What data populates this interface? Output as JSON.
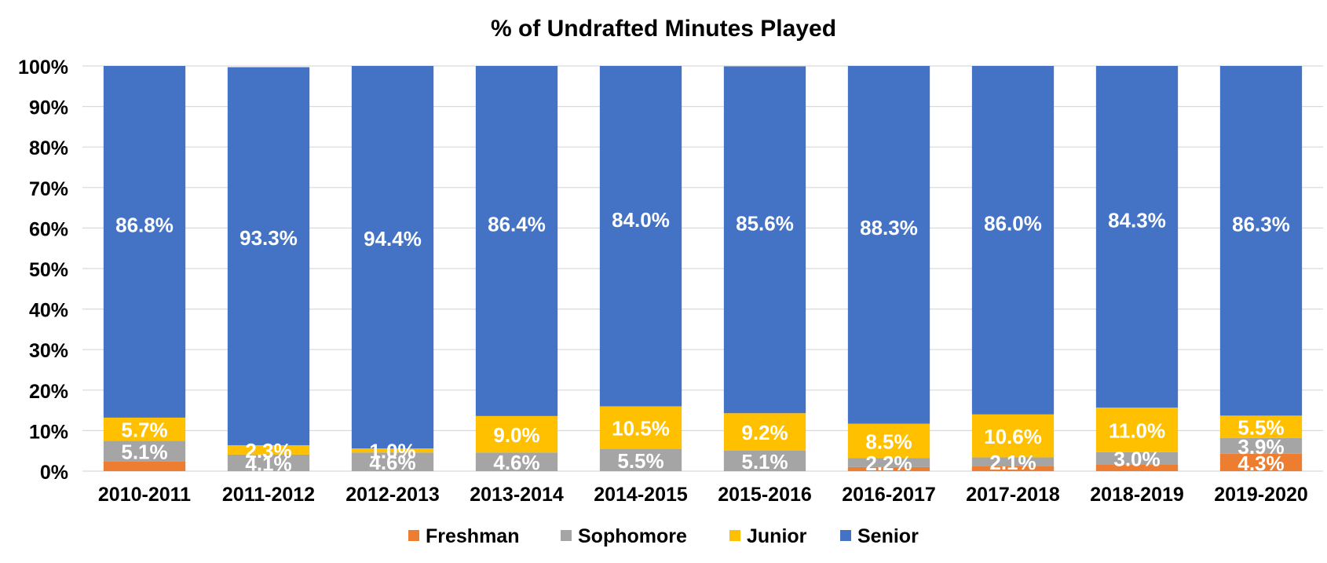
{
  "chart_data": {
    "type": "bar",
    "stacked": true,
    "percent_stacked": true,
    "title": "% of Undrafted Minutes Played",
    "xlabel": "",
    "ylabel": "",
    "ylim": [
      0,
      100
    ],
    "yticks": [
      "0%",
      "10%",
      "20%",
      "30%",
      "40%",
      "50%",
      "60%",
      "70%",
      "80%",
      "90%",
      "100%"
    ],
    "grid": true,
    "legend_position": "bottom",
    "categories": [
      "2010-2011",
      "2011-2012",
      "2012-2013",
      "2013-2014",
      "2014-2015",
      "2015-2016",
      "2016-2017",
      "2017-2018",
      "2018-2019",
      "2019-2020"
    ],
    "series": [
      {
        "name": "Freshman",
        "color": "#ED7D31",
        "values": [
          2.4,
          0,
          0,
          0,
          0,
          0,
          1.0,
          1.3,
          1.7,
          4.3
        ],
        "labels": [
          "",
          "",
          "",
          "",
          "",
          "",
          "",
          "",
          "",
          "4.3%"
        ]
      },
      {
        "name": "Sophomore",
        "color": "#A5A5A5",
        "values": [
          5.1,
          4.1,
          4.6,
          4.6,
          5.5,
          5.1,
          2.2,
          2.1,
          3.0,
          3.9
        ],
        "labels": [
          "5.1%",
          "4.1%",
          "4.6%",
          "4.6%",
          "5.5%",
          "5.1%",
          "2.2%",
          "2.1%",
          "3.0%",
          "3.9%"
        ]
      },
      {
        "name": "Junior",
        "color": "#FFC000",
        "values": [
          5.7,
          2.3,
          1.0,
          9.0,
          10.5,
          9.2,
          8.5,
          10.6,
          11.0,
          5.5
        ],
        "labels": [
          "5.7%",
          "2.3%",
          "1.0%",
          "9.0%",
          "10.5%",
          "9.2%",
          "8.5%",
          "10.6%",
          "11.0%",
          "5.5%"
        ]
      },
      {
        "name": "Senior",
        "color": "#4472C4",
        "values": [
          86.8,
          93.3,
          94.4,
          86.4,
          84.0,
          85.6,
          88.3,
          86.0,
          84.3,
          86.3
        ],
        "labels": [
          "86.8%",
          "93.3%",
          "94.4%",
          "86.4%",
          "84.0%",
          "85.6%",
          "88.3%",
          "86.0%",
          "84.3%",
          "86.3%"
        ]
      }
    ]
  }
}
